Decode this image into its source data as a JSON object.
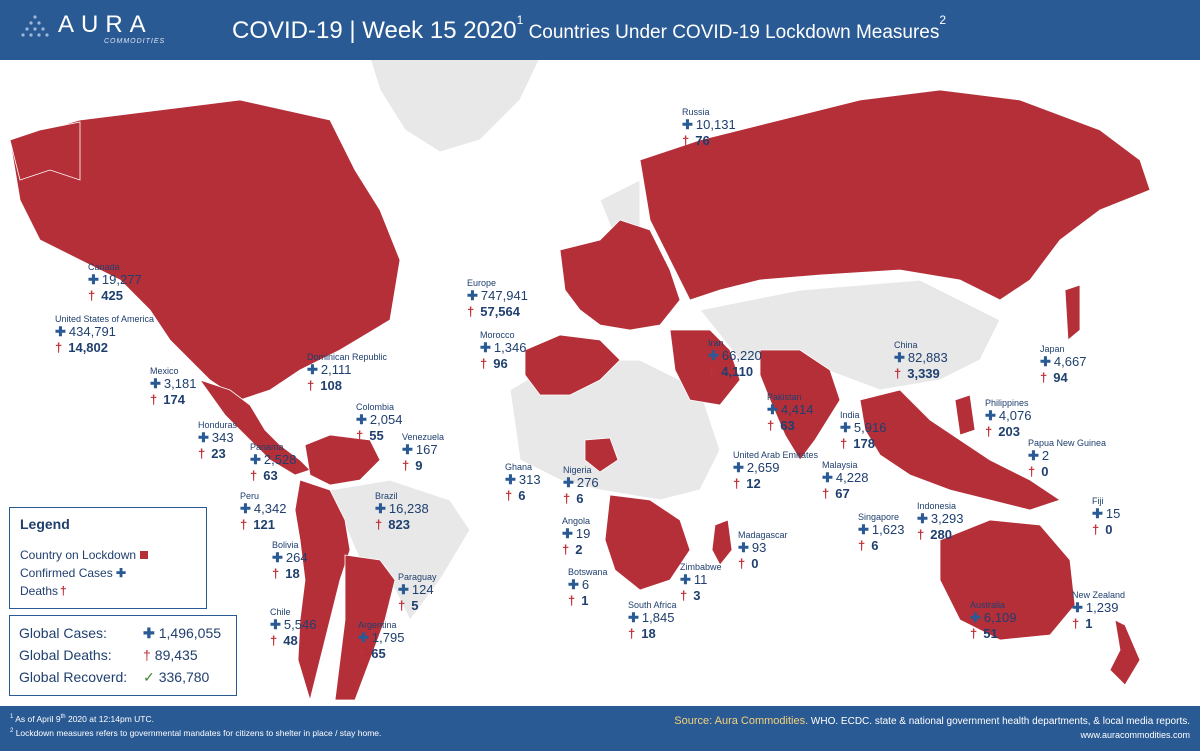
{
  "header": {
    "logo_word": "AURA",
    "logo_sub": "COMMODITIES",
    "title_main": "COVID-19 | Week 15 2020",
    "title_sup1": "1",
    "title_rest": " Countries Under COVID-19 Lockdown Measures",
    "title_sup2": "2"
  },
  "colors": {
    "header_bg": "#2a5a94",
    "lockdown": "#b52f39",
    "land": "#e8e8e8",
    "cases_icon": "#2a5a94",
    "death_icon": "#c0323a",
    "recovered_icon": "#3e8a2e"
  },
  "countries": [
    {
      "name": "Canada",
      "cases": "19,277",
      "deaths": "425"
    },
    {
      "name": "United States of America",
      "cases": "434,791",
      "deaths": "14,802"
    },
    {
      "name": "Mexico",
      "cases": "3,181",
      "deaths": "174"
    },
    {
      "name": "Dominican Republic",
      "cases": "2,111",
      "deaths": "108"
    },
    {
      "name": "Colombia",
      "cases": "2,054",
      "deaths": "55"
    },
    {
      "name": "Venezuela",
      "cases": "167",
      "deaths": "9"
    },
    {
      "name": "Honduras",
      "cases": "343",
      "deaths": "23"
    },
    {
      "name": "Panama",
      "cases": "2,528",
      "deaths": "63"
    },
    {
      "name": "Peru",
      "cases": "4,342",
      "deaths": "121"
    },
    {
      "name": "Brazil",
      "cases": "16,238",
      "deaths": "823"
    },
    {
      "name": "Bolivia",
      "cases": "264",
      "deaths": "18"
    },
    {
      "name": "Paraguay",
      "cases": "124",
      "deaths": "5"
    },
    {
      "name": "Chile",
      "cases": "5,546",
      "deaths": "48"
    },
    {
      "name": "Argentina",
      "cases": "1,795",
      "deaths": "65"
    },
    {
      "name": "Russia",
      "cases": "10,131",
      "deaths": "76"
    },
    {
      "name": "Europe",
      "cases": "747,941",
      "deaths": "57,564"
    },
    {
      "name": "Morocco",
      "cases": "1,346",
      "deaths": "96"
    },
    {
      "name": "Iran",
      "cases": "66,220",
      "deaths": "4,110"
    },
    {
      "name": "China",
      "cases": "82,883",
      "deaths": "3,339"
    },
    {
      "name": "Japan",
      "cases": "4,667",
      "deaths": "94"
    },
    {
      "name": "Pakistan",
      "cases": "4,414",
      "deaths": "63"
    },
    {
      "name": "India",
      "cases": "5,916",
      "deaths": "178"
    },
    {
      "name": "Philippines",
      "cases": "4,076",
      "deaths": "203"
    },
    {
      "name": "Papua New Guinea",
      "cases": "2",
      "deaths": "0"
    },
    {
      "name": "United Arab Emirates",
      "cases": "2,659",
      "deaths": "12"
    },
    {
      "name": "Malaysia",
      "cases": "4,228",
      "deaths": "67"
    },
    {
      "name": "Ghana",
      "cases": "313",
      "deaths": "6"
    },
    {
      "name": "Nigeria",
      "cases": "276",
      "deaths": "6"
    },
    {
      "name": "Angola",
      "cases": "19",
      "deaths": "2"
    },
    {
      "name": "Botswana",
      "cases": "6",
      "deaths": "1"
    },
    {
      "name": "Madagascar",
      "cases": "93",
      "deaths": "0"
    },
    {
      "name": "Zimbabwe",
      "cases": "11",
      "deaths": "3"
    },
    {
      "name": "South Africa",
      "cases": "1,845",
      "deaths": "18"
    },
    {
      "name": "Singapore",
      "cases": "1,623",
      "deaths": "6"
    },
    {
      "name": "Indonesia",
      "cases": "3,293",
      "deaths": "280"
    },
    {
      "name": "Fiji",
      "cases": "15",
      "deaths": "0"
    },
    {
      "name": "Australia",
      "cases": "6,109",
      "deaths": "51"
    },
    {
      "name": "New Zealand",
      "cases": "1,239",
      "deaths": "1"
    }
  ],
  "legend": {
    "title": "Legend",
    "lockdown": "Country on Lockdown",
    "cases": "Confirmed Cases",
    "deaths": "Deaths"
  },
  "globals": {
    "cases_label": "Global Cases:",
    "cases_value": "1,496,055",
    "deaths_label": "Global Deaths:",
    "deaths_value": "89,435",
    "recovered_label": "Global Recoverd:",
    "recovered_value": "336,780"
  },
  "footer": {
    "fn1_num": "1",
    "fn1_a": " As of April 9",
    "fn1_th": "th",
    "fn1_b": " 2020 at 12:14pm UTC.",
    "fn2_num": "2",
    "fn2": " Lockdown measures refers to governmental mandates for citizens to shelter in place / stay home.",
    "source_label": "Source: Aura Commodities.",
    "source_rest": " WHO. ECDC. state & national government health departments, & local media reports.",
    "site": "www.auracommodities.com"
  }
}
